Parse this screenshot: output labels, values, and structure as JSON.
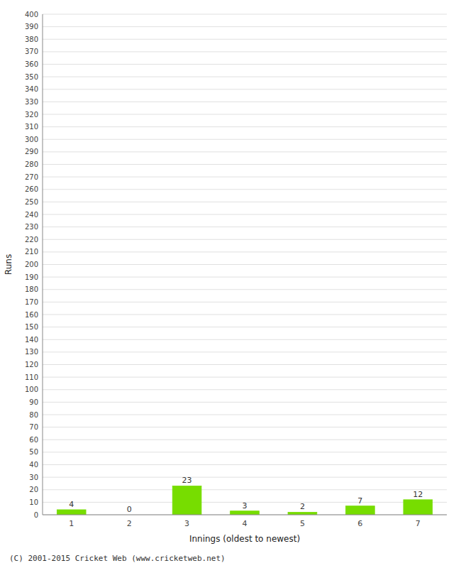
{
  "chart_data": {
    "type": "bar",
    "xlabel": "Innings (oldest to newest)",
    "ylabel": "Runs",
    "categories": [
      1,
      2,
      3,
      4,
      5,
      6,
      7
    ],
    "values": [
      4,
      0,
      23,
      3,
      2,
      7,
      12
    ],
    "color": "#77dd00",
    "ylim": [
      0,
      400
    ],
    "yticks": [
      0,
      10,
      20,
      30,
      40,
      50,
      60,
      70,
      80,
      90,
      100,
      110,
      120,
      130,
      140,
      150,
      160,
      170,
      180,
      190,
      200,
      210,
      220,
      230,
      240,
      250,
      260,
      270,
      280,
      290,
      300,
      310,
      320,
      330,
      340,
      350,
      360,
      370,
      380,
      390,
      400
    ],
    "grid": true,
    "data_labels": true,
    "footer": "(C) 2001-2015 Cricket Web (www.cricketweb.net)"
  }
}
